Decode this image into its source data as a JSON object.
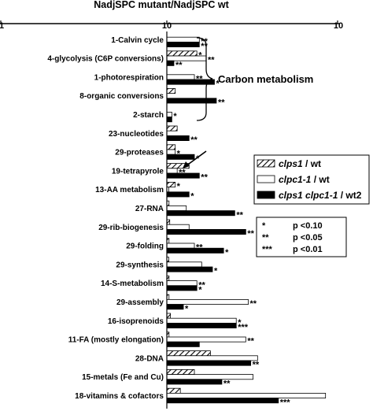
{
  "chart_data": {
    "type": "bar",
    "orientation": "horizontal",
    "title": "NadjSPC mutant/NadjSPC wt",
    "xscale": "log",
    "xlim": [
      1,
      10
    ],
    "xticks": [
      "1",
      "10",
      "10"
    ],
    "grid": false,
    "series": [
      {
        "name": "clps1",
        "suffix": " / wt",
        "pattern": "hatched"
      },
      {
        "name": "clpc1-1",
        "suffix": " / wt",
        "pattern": "white"
      },
      {
        "name": "clps1 clpc1-1",
        "suffix": " / wt2",
        "pattern": "black"
      }
    ],
    "categories": [
      {
        "label": "1-Calvin cycle",
        "values": [
          null,
          1.55,
          1.55
        ],
        "sig": [
          "",
          "**",
          "**"
        ]
      },
      {
        "label": "4-glycolysis (C6P conversions)",
        "values": [
          1.5,
          1.7,
          1.1
        ],
        "sig": [
          "*",
          "**",
          "**"
        ]
      },
      {
        "label": "1-photorespiration",
        "values": [
          null,
          1.45,
          1.9
        ],
        "sig": [
          "",
          "**",
          "*"
        ]
      },
      {
        "label": "8-organic conversions",
        "values": [
          1.12,
          null,
          1.95
        ],
        "sig": [
          "",
          "",
          "**"
        ]
      },
      {
        "label": "2-starch",
        "values": [
          null,
          1.07,
          1.07
        ],
        "sig": [
          "",
          "*",
          ""
        ]
      },
      {
        "label": "23-nucleotides",
        "values": [
          1.15,
          null,
          1.35
        ],
        "sig": [
          "",
          "",
          "**"
        ]
      },
      {
        "label": "29-proteases",
        "values": [
          1.12,
          1.12,
          1.45
        ],
        "sig": [
          "",
          "*",
          "*"
        ]
      },
      {
        "label": "19-tetrapyrole",
        "values": [
          1.35,
          1.15,
          1.55
        ],
        "sig": [
          "",
          "**",
          "**"
        ]
      },
      {
        "label": "13-AA metabolism",
        "values": [
          1.12,
          1.02,
          1.35
        ],
        "sig": [
          "*",
          "",
          "*"
        ]
      },
      {
        "label": "27-RNA",
        "values": [
          1.03,
          1.3,
          2.5
        ],
        "sig": [
          "",
          "",
          "**"
        ]
      },
      {
        "label": "29-rib-biogenesis",
        "values": [
          1.04,
          1.35,
          2.9
        ],
        "sig": [
          "",
          "",
          "**"
        ]
      },
      {
        "label": "29-folding",
        "values": [
          1.03,
          1.45,
          2.15
        ],
        "sig": [
          "",
          "**",
          "*"
        ]
      },
      {
        "label": "29-synthesis",
        "values": [
          1.02,
          1.6,
          1.85
        ],
        "sig": [
          "",
          "",
          "*"
        ]
      },
      {
        "label": "14-S-metabolism",
        "values": [
          1.03,
          1.5,
          1.5
        ],
        "sig": [
          "",
          "**",
          "*"
        ]
      },
      {
        "label": "29-assembly",
        "values": [
          1.03,
          3.0,
          1.25
        ],
        "sig": [
          "",
          "**",
          "*"
        ]
      },
      {
        "label": "16-isoprenoids",
        "values": [
          1.05,
          2.55,
          2.55
        ],
        "sig": [
          "",
          "*",
          "***"
        ]
      },
      {
        "label": "11-FA (mostly elongation)",
        "values": [
          1.03,
          2.9,
          1.55
        ],
        "sig": [
          "",
          "**",
          ""
        ]
      },
      {
        "label": "28-DNA",
        "values": [
          1.8,
          3.4,
          3.1
        ],
        "sig": [
          "",
          "",
          "**"
        ]
      },
      {
        "label": "15-metals (Fe and Cu)",
        "values": [
          1.45,
          3.2,
          2.1
        ],
        "sig": [
          "",
          "",
          "**"
        ]
      },
      {
        "label": "18-vitamins & cofactors",
        "values": [
          1.2,
          8.5,
          4.5
        ],
        "sig": [
          "",
          "",
          "***"
        ]
      }
    ],
    "annotations": {
      "group_label": "Carbon metabolism",
      "significance_key": [
        {
          "symbol": "*",
          "text": "p <0.10"
        },
        {
          "symbol": "**",
          "text": "p <0.05"
        },
        {
          "symbol": "***",
          "text": "p <0.01"
        }
      ]
    }
  }
}
